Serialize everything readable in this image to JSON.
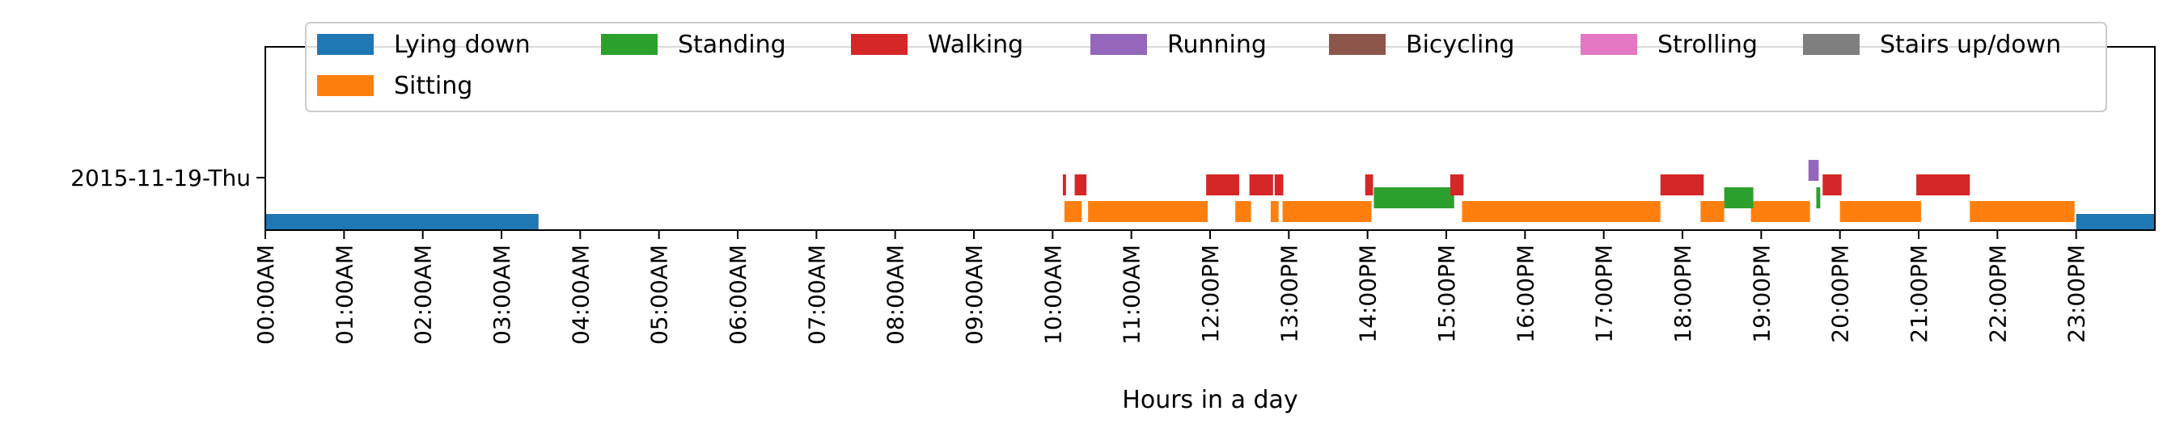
{
  "chart_data": {
    "type": "broken_barh_timeline",
    "xlabel": "Hours in a day",
    "ylabel": "",
    "xlim": [
      0,
      24
    ],
    "grid": false,
    "legend_placement": "top",
    "legend": [
      {
        "name": "Lying down",
        "color": "#1f77b4"
      },
      {
        "name": "Standing",
        "color": "#2ca02c"
      },
      {
        "name": "Walking",
        "color": "#d62728"
      },
      {
        "name": "Running",
        "color": "#9467bd"
      },
      {
        "name": "Bicycling",
        "color": "#8c564b"
      },
      {
        "name": "Strolling",
        "color": "#e377c2"
      },
      {
        "name": "Stairs up/down",
        "color": "#7f7f7f"
      },
      {
        "name": "Sitting",
        "color": "#ff7f0e"
      }
    ],
    "xticks": [
      {
        "value": 0,
        "label": "00:00AM"
      },
      {
        "value": 1,
        "label": "01:00AM"
      },
      {
        "value": 2,
        "label": "02:00AM"
      },
      {
        "value": 3,
        "label": "03:00AM"
      },
      {
        "value": 4,
        "label": "04:00AM"
      },
      {
        "value": 5,
        "label": "05:00AM"
      },
      {
        "value": 6,
        "label": "06:00AM"
      },
      {
        "value": 7,
        "label": "07:00AM"
      },
      {
        "value": 8,
        "label": "08:00AM"
      },
      {
        "value": 9,
        "label": "09:00AM"
      },
      {
        "value": 10,
        "label": "10:00AM"
      },
      {
        "value": 11,
        "label": "11:00AM"
      },
      {
        "value": 12,
        "label": "12:00PM"
      },
      {
        "value": 13,
        "label": "13:00PM"
      },
      {
        "value": 14,
        "label": "14:00PM"
      },
      {
        "value": 15,
        "label": "15:00PM"
      },
      {
        "value": 16,
        "label": "16:00PM"
      },
      {
        "value": 17,
        "label": "17:00PM"
      },
      {
        "value": 18,
        "label": "18:00PM"
      },
      {
        "value": 19,
        "label": "19:00PM"
      },
      {
        "value": 20,
        "label": "20:00PM"
      },
      {
        "value": 21,
        "label": "21:00PM"
      },
      {
        "value": 22,
        "label": "22:00PM"
      },
      {
        "value": 23,
        "label": "23:00PM"
      }
    ],
    "rows": [
      {
        "label": "2015-11-19-Thu",
        "series": [
          {
            "name": "Lying down",
            "intervals": [
              [
                0.0,
                3.47
              ],
              [
                23.0,
                24.0
              ]
            ]
          },
          {
            "name": "Sitting",
            "intervals": [
              [
                10.15,
                10.37
              ],
              [
                10.45,
                11.97
              ],
              [
                12.32,
                12.52
              ],
              [
                12.77,
                12.87
              ],
              [
                12.92,
                14.05
              ],
              [
                15.2,
                17.72
              ],
              [
                18.23,
                18.53
              ],
              [
                18.87,
                19.62
              ],
              [
                20.0,
                21.03
              ],
              [
                21.65,
                22.98
              ]
            ]
          },
          {
            "name": "Standing",
            "intervals": [
              [
                14.08,
                15.1
              ],
              [
                18.53,
                18.9
              ],
              [
                19.7,
                19.75
              ]
            ]
          },
          {
            "name": "Walking",
            "intervals": [
              [
                10.13,
                10.17
              ],
              [
                10.28,
                10.43
              ],
              [
                11.95,
                12.37
              ],
              [
                12.5,
                12.8
              ],
              [
                12.82,
                12.93
              ],
              [
                13.97,
                14.07
              ],
              [
                15.05,
                15.22
              ],
              [
                17.72,
                18.27
              ],
              [
                19.78,
                20.02
              ],
              [
                20.97,
                21.65
              ]
            ]
          },
          {
            "name": "Running",
            "intervals": [
              [
                19.6,
                19.73
              ]
            ]
          }
        ]
      }
    ]
  }
}
